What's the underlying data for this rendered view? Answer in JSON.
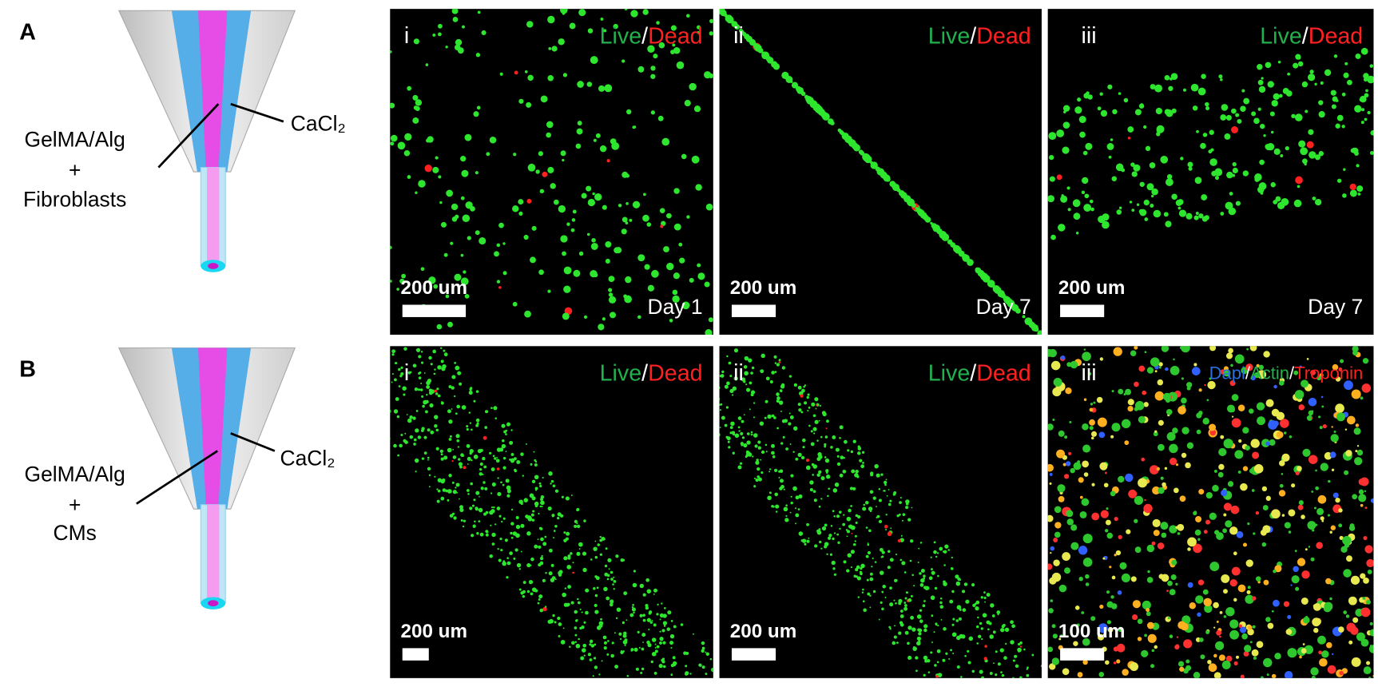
{
  "panels": [
    {
      "label": "A",
      "diagram": {
        "inner": [
          "GelMA/Alg",
          "+",
          "Fibroblasts"
        ],
        "outer": "CaCl₂"
      },
      "images": [
        {
          "index": "i",
          "stain": [
            {
              "text": "Live",
              "color": "#22b14c"
            },
            {
              "text": "/",
              "color": "#ffffff"
            },
            {
              "text": "Dead",
              "color": "#ff2020"
            }
          ],
          "scale": "200 um",
          "day": "Day 1"
        },
        {
          "index": "ii",
          "stain": [
            {
              "text": "Live",
              "color": "#22b14c"
            },
            {
              "text": "/",
              "color": "#ffffff"
            },
            {
              "text": "Dead",
              "color": "#ff2020"
            }
          ],
          "scale": "200 um",
          "day": "Day 7"
        },
        {
          "index": "iii",
          "stain": [
            {
              "text": "Live",
              "color": "#22b14c"
            },
            {
              "text": "/",
              "color": "#ffffff"
            },
            {
              "text": "Dead",
              "color": "#ff2020"
            }
          ],
          "scale": "200 um",
          "day": "Day 7"
        }
      ]
    },
    {
      "label": "B",
      "diagram": {
        "inner": [
          "GelMA/Alg",
          "+",
          "CMs"
        ],
        "outer": "CaCl₂"
      },
      "images": [
        {
          "index": "i",
          "stain": [
            {
              "text": "Live",
              "color": "#22b14c"
            },
            {
              "text": "/",
              "color": "#ffffff"
            },
            {
              "text": "Dead",
              "color": "#ff2020"
            }
          ],
          "scale": "200 um"
        },
        {
          "index": "ii",
          "stain": [
            {
              "text": "Live",
              "color": "#22b14c"
            },
            {
              "text": "/",
              "color": "#ffffff"
            },
            {
              "text": "Dead",
              "color": "#ff2020"
            }
          ],
          "scale": "200 um"
        },
        {
          "index": "iii",
          "stain": [
            {
              "text": "Dapi",
              "color": "#2a6fe0"
            },
            {
              "text": "/",
              "color": "#ffffff"
            },
            {
              "text": "Actin",
              "color": "#22b14c"
            },
            {
              "text": "/",
              "color": "#ffffff"
            },
            {
              "text": "Troponin",
              "color": "#ff2020"
            }
          ],
          "scale": "100 um"
        }
      ]
    }
  ]
}
